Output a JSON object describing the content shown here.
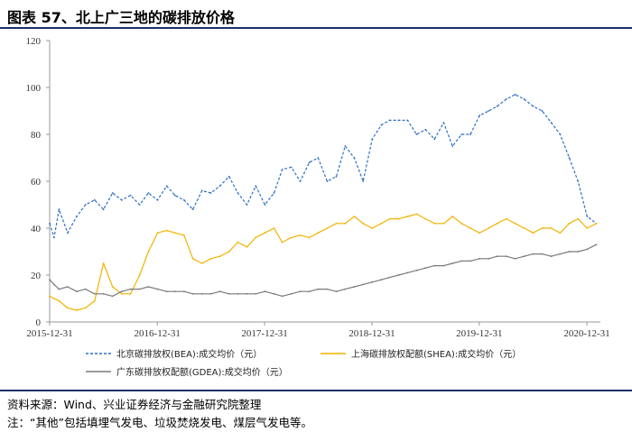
{
  "figure_title": "图表 57、北上广三地的碳排放价格",
  "source_line": "资料来源：Wind、兴业证券经济与金融研究院整理",
  "note_line": "注：“其他”包括填埋气发电、垃圾焚烧发电、煤层气发电等。",
  "chart_data": {
    "type": "line",
    "title": "",
    "xlabel": "",
    "ylabel": "",
    "ylim": [
      0,
      120
    ],
    "yticks": [
      0,
      20,
      40,
      60,
      80,
      100,
      120
    ],
    "xlim": [
      "2015-12-31",
      "2021-02-15"
    ],
    "xticks": [
      "2015-12-31",
      "2016-12-31",
      "2017-12-31",
      "2018-12-31",
      "2019-12-31",
      "2020-12-31"
    ],
    "grid": false,
    "legend_position": "bottom",
    "series": [
      {
        "name": "北京碳排放权(BEA):成交均价（元）",
        "color": "#2e6fc4",
        "dash": "dashed",
        "x": [
          "2015-12-31",
          "2016-01-15",
          "2016-02-01",
          "2016-03-01",
          "2016-04-01",
          "2016-05-01",
          "2016-06-01",
          "2016-07-01",
          "2016-08-01",
          "2016-09-01",
          "2016-10-01",
          "2016-11-01",
          "2016-12-01",
          "2017-01-01",
          "2017-02-01",
          "2017-03-01",
          "2017-04-01",
          "2017-05-01",
          "2017-06-01",
          "2017-07-01",
          "2017-08-01",
          "2017-09-01",
          "2017-10-01",
          "2017-11-01",
          "2017-12-01",
          "2018-01-01",
          "2018-02-01",
          "2018-03-01",
          "2018-04-01",
          "2018-05-01",
          "2018-06-01",
          "2018-07-01",
          "2018-08-01",
          "2018-09-01",
          "2018-10-01",
          "2018-11-01",
          "2018-12-01",
          "2019-01-01",
          "2019-02-01",
          "2019-03-01",
          "2019-04-01",
          "2019-05-01",
          "2019-06-01",
          "2019-07-01",
          "2019-08-01",
          "2019-09-01",
          "2019-10-01",
          "2019-11-01",
          "2019-12-01",
          "2020-01-01",
          "2020-02-01",
          "2020-03-01",
          "2020-04-01",
          "2020-05-01",
          "2020-06-01",
          "2020-07-01",
          "2020-08-01",
          "2020-09-01",
          "2020-10-01",
          "2020-11-01",
          "2020-12-01",
          "2021-01-01",
          "2021-02-01"
        ],
        "values": [
          42,
          36,
          48,
          38,
          45,
          50,
          52,
          48,
          55,
          52,
          54,
          50,
          55,
          52,
          58,
          54,
          52,
          48,
          56,
          55,
          58,
          62,
          55,
          50,
          58,
          50,
          55,
          65,
          66,
          60,
          68,
          70,
          60,
          62,
          75,
          70,
          60,
          78,
          84,
          86,
          86,
          86,
          80,
          82,
          78,
          85,
          75,
          80,
          80,
          88,
          90,
          92,
          95,
          97,
          95,
          92,
          90,
          85,
          80,
          70,
          60,
          45,
          42
        ]
      },
      {
        "name": "上海碳排放权配额(SHEA):成交均价（元）",
        "color": "#f0b400",
        "dash": "solid",
        "x": [
          "2015-12-31",
          "2016-01-15",
          "2016-02-01",
          "2016-03-01",
          "2016-04-01",
          "2016-05-01",
          "2016-06-01",
          "2016-07-01",
          "2016-08-01",
          "2016-09-01",
          "2016-10-01",
          "2016-11-01",
          "2016-12-01",
          "2017-01-01",
          "2017-02-01",
          "2017-03-01",
          "2017-04-01",
          "2017-05-01",
          "2017-06-01",
          "2017-07-01",
          "2017-08-01",
          "2017-09-01",
          "2017-10-01",
          "2017-11-01",
          "2017-12-01",
          "2018-01-01",
          "2018-02-01",
          "2018-03-01",
          "2018-04-01",
          "2018-05-01",
          "2018-06-01",
          "2018-07-01",
          "2018-08-01",
          "2018-09-01",
          "2018-10-01",
          "2018-11-01",
          "2018-12-01",
          "2019-01-01",
          "2019-02-01",
          "2019-03-01",
          "2019-04-01",
          "2019-05-01",
          "2019-06-01",
          "2019-07-01",
          "2019-08-01",
          "2019-09-01",
          "2019-10-01",
          "2019-11-01",
          "2019-12-01",
          "2020-01-01",
          "2020-02-01",
          "2020-03-01",
          "2020-04-01",
          "2020-05-01",
          "2020-06-01",
          "2020-07-01",
          "2020-08-01",
          "2020-09-01",
          "2020-10-01",
          "2020-11-01",
          "2020-12-01",
          "2021-01-01",
          "2021-02-01"
        ],
        "values": [
          11,
          10,
          9,
          6,
          5,
          6,
          9,
          25,
          15,
          12,
          12,
          20,
          30,
          38,
          39,
          38,
          37,
          27,
          25,
          27,
          28,
          30,
          34,
          32,
          36,
          38,
          40,
          34,
          36,
          37,
          36,
          38,
          40,
          42,
          42,
          45,
          42,
          40,
          42,
          44,
          44,
          45,
          46,
          44,
          42,
          42,
          45,
          42,
          40,
          38,
          40,
          42,
          44,
          42,
          40,
          38,
          40,
          40,
          38,
          42,
          44,
          40,
          42
        ]
      },
      {
        "name": "广东碳排放权配额(GDEA):成交均价（元）",
        "color": "#7a7a7a",
        "dash": "solid",
        "x": [
          "2015-12-31",
          "2016-01-15",
          "2016-02-01",
          "2016-03-01",
          "2016-04-01",
          "2016-05-01",
          "2016-06-01",
          "2016-07-01",
          "2016-08-01",
          "2016-09-01",
          "2016-10-01",
          "2016-11-01",
          "2016-12-01",
          "2017-01-01",
          "2017-02-01",
          "2017-03-01",
          "2017-04-01",
          "2017-05-01",
          "2017-06-01",
          "2017-07-01",
          "2017-08-01",
          "2017-09-01",
          "2017-10-01",
          "2017-11-01",
          "2017-12-01",
          "2018-01-01",
          "2018-02-01",
          "2018-03-01",
          "2018-04-01",
          "2018-05-01",
          "2018-06-01",
          "2018-07-01",
          "2018-08-01",
          "2018-09-01",
          "2018-10-01",
          "2018-11-01",
          "2018-12-01",
          "2019-01-01",
          "2019-02-01",
          "2019-03-01",
          "2019-04-01",
          "2019-05-01",
          "2019-06-01",
          "2019-07-01",
          "2019-08-01",
          "2019-09-01",
          "2019-10-01",
          "2019-11-01",
          "2019-12-01",
          "2020-01-01",
          "2020-02-01",
          "2020-03-01",
          "2020-04-01",
          "2020-05-01",
          "2020-06-01",
          "2020-07-01",
          "2020-08-01",
          "2020-09-01",
          "2020-10-01",
          "2020-11-01",
          "2020-12-01",
          "2021-01-01",
          "2021-02-01"
        ],
        "values": [
          18,
          16,
          14,
          15,
          13,
          14,
          12,
          12,
          11,
          13,
          14,
          14,
          15,
          14,
          13,
          13,
          13,
          12,
          12,
          12,
          13,
          12,
          12,
          12,
          12,
          13,
          12,
          11,
          12,
          13,
          13,
          14,
          14,
          13,
          14,
          15,
          16,
          17,
          18,
          19,
          20,
          21,
          22,
          23,
          24,
          24,
          25,
          26,
          26,
          27,
          27,
          28,
          28,
          27,
          28,
          29,
          29,
          28,
          29,
          30,
          30,
          31,
          33
        ]
      }
    ]
  }
}
